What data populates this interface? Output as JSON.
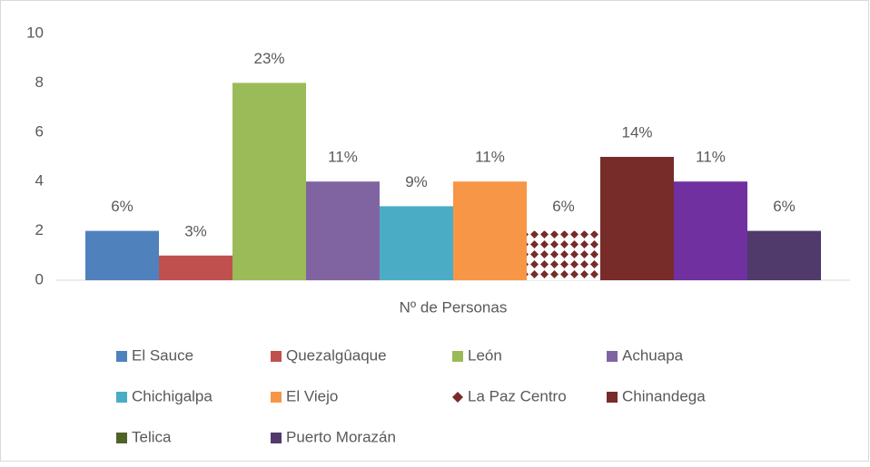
{
  "chart_data": {
    "type": "bar",
    "categories": [
      "Nº de Personas"
    ],
    "ylim": [
      0,
      10
    ],
    "yticks": [
      0,
      2,
      4,
      6,
      8,
      10
    ],
    "series": [
      {
        "name": "El Sauce",
        "color": "#4f81bd",
        "values": [
          2
        ],
        "value_labels": [
          "6%"
        ]
      },
      {
        "name": "Quezalgûaque",
        "color": "#c0504d",
        "values": [
          1
        ],
        "value_labels": [
          "3%"
        ]
      },
      {
        "name": "León",
        "color": "#9bbb59",
        "values": [
          8
        ],
        "value_labels": [
          "23%"
        ]
      },
      {
        "name": "Achuapa",
        "color": "#8064a2",
        "values": [
          4
        ],
        "value_labels": [
          "11%"
        ]
      },
      {
        "name": "Chichigalpa",
        "color": "#4bacc6",
        "values": [
          3
        ],
        "value_labels": [
          "9%"
        ]
      },
      {
        "name": "El Viejo",
        "color": "#f79646",
        "values": [
          4
        ],
        "value_labels": [
          "11%"
        ]
      },
      {
        "name": "La Paz Centro",
        "color": "#772c2a",
        "pattern": "diamond",
        "values": [
          2
        ],
        "value_labels": [
          "6%"
        ]
      },
      {
        "name": "Chinandega",
        "color": "#772c2a",
        "values": [
          5
        ],
        "value_labels": [
          "14%"
        ]
      },
      {
        "name": "Telica",
        "color": "#7030a0",
        "legend_color": "#4f6228",
        "values": [
          4
        ],
        "value_labels": [
          "11%"
        ]
      },
      {
        "name": "Puerto Morazán",
        "color": "#4f3a6b",
        "values": [
          2
        ],
        "value_labels": [
          "6%"
        ]
      }
    ],
    "legend": "bottom",
    "grid": false
  }
}
